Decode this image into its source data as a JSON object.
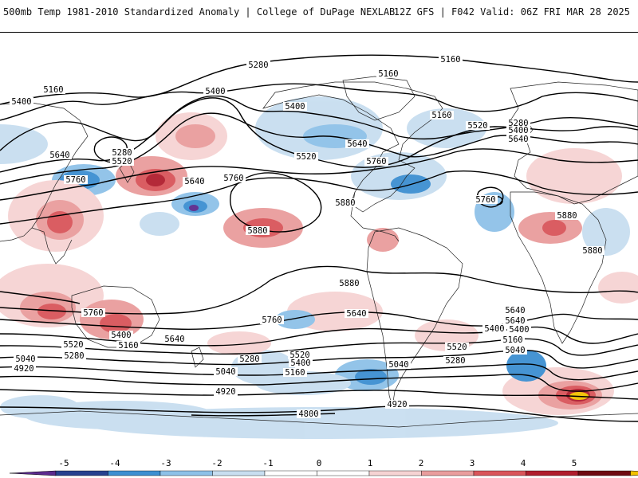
{
  "header": {
    "title_left": "500mb Temp 1981-2010 Standardized Anomaly | College of DuPage NEXLAB",
    "title_right": "12Z GFS | F042 Valid: 06Z FRI MAR 28 2025"
  },
  "colors": {
    "strong_neg": "#5b2a8e",
    "neg4": "#27418f",
    "neg3": "#3d8fd1",
    "neg2": "#8ec1e8",
    "neg1": "#c8def0",
    "neutral": "#ffffff",
    "pos1": "#f6d3d3",
    "pos2": "#e99d9d",
    "pos3": "#d9555a",
    "pos4": "#b01e2e",
    "pos5": "#6e0a12",
    "extreme": "#f2c200"
  },
  "colorbar": {
    "ticks": [
      "-5",
      "-4",
      "-3",
      "-2",
      "-1",
      "0",
      "1",
      "2",
      "3",
      "4",
      "5"
    ]
  },
  "contour_labels": [
    {
      "t": "5280"
    },
    {
      "t": "5160"
    },
    {
      "t": "5160"
    },
    {
      "t": "5160"
    },
    {
      "t": "5400"
    },
    {
      "t": "5160"
    },
    {
      "t": "5400"
    },
    {
      "t": "5400"
    },
    {
      "t": "5520"
    },
    {
      "t": "5280"
    },
    {
      "t": "5400"
    },
    {
      "t": "5640"
    },
    {
      "t": "5640"
    },
    {
      "t": "5280"
    },
    {
      "t": "5520"
    },
    {
      "t": "5520"
    },
    {
      "t": "5640"
    },
    {
      "t": "5760"
    },
    {
      "t": "5640"
    },
    {
      "t": "5760"
    },
    {
      "t": "5760"
    },
    {
      "t": "5880"
    },
    {
      "t": "5880"
    },
    {
      "t": "5880"
    },
    {
      "t": "5880"
    },
    {
      "t": "5880"
    },
    {
      "t": "5760"
    },
    {
      "t": "5760"
    },
    {
      "t": "5640"
    },
    {
      "t": "5760"
    },
    {
      "t": "5640"
    },
    {
      "t": "5640"
    },
    {
      "t": "5400"
    },
    {
      "t": "5160"
    },
    {
      "t": "5520"
    },
    {
      "t": "5280"
    },
    {
      "t": "5040"
    },
    {
      "t": "4920"
    },
    {
      "t": "5520"
    },
    {
      "t": "5400"
    },
    {
      "t": "5280"
    },
    {
      "t": "5160"
    },
    {
      "t": "5040"
    },
    {
      "t": "4920"
    },
    {
      "t": "5040"
    },
    {
      "t": "5280"
    },
    {
      "t": "4920"
    },
    {
      "t": "4800"
    },
    {
      "t": "5640"
    },
    {
      "t": "5400"
    },
    {
      "t": "5520"
    },
    {
      "t": "5160"
    },
    {
      "t": "5040"
    },
    {
      "t": "5400"
    }
  ]
}
